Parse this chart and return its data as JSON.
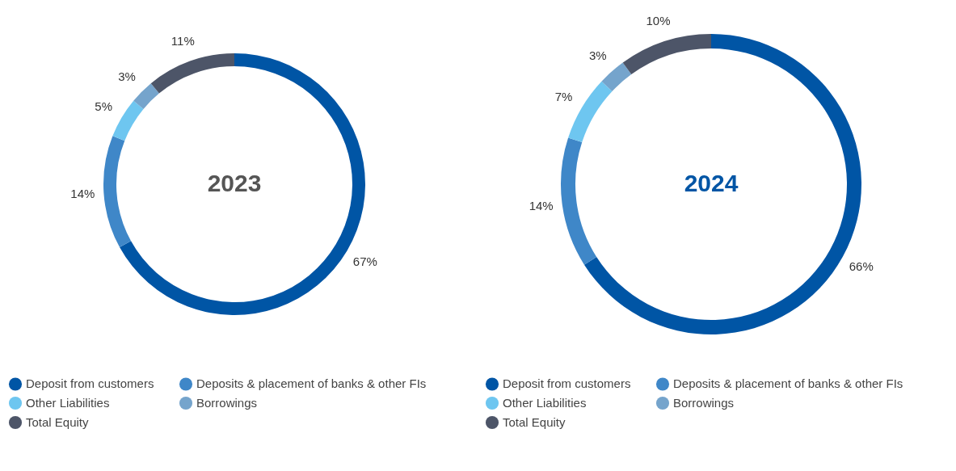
{
  "chart_data": [
    {
      "type": "donut",
      "title": "2023",
      "categories": [
        "Deposit from customers",
        "Deposits & placement of banks & other FIs",
        "Other Liabilities",
        "Borrowings",
        "Total Equity"
      ],
      "values": [
        67,
        14,
        5,
        3,
        11
      ],
      "value_labels": [
        "67%",
        "14%",
        "5%",
        "3%",
        "11%"
      ],
      "colors": [
        "#0055a5",
        "#3f87c8",
        "#6ec6f0",
        "#75a4cc",
        "#4d5568"
      ],
      "legend": "bottom"
    },
    {
      "type": "donut",
      "title": "2024",
      "categories": [
        "Deposit from customers",
        "Deposits & placement of banks & other FIs",
        "Other Liabilities",
        "Borrowings",
        "Total Equity"
      ],
      "values": [
        66,
        14,
        7,
        3,
        10
      ],
      "value_labels": [
        "66%",
        "14%",
        "7%",
        "3%",
        "10%"
      ],
      "colors": [
        "#0055a5",
        "#3f87c8",
        "#6ec6f0",
        "#75a4cc",
        "#4d5568"
      ],
      "legend": "bottom"
    }
  ]
}
